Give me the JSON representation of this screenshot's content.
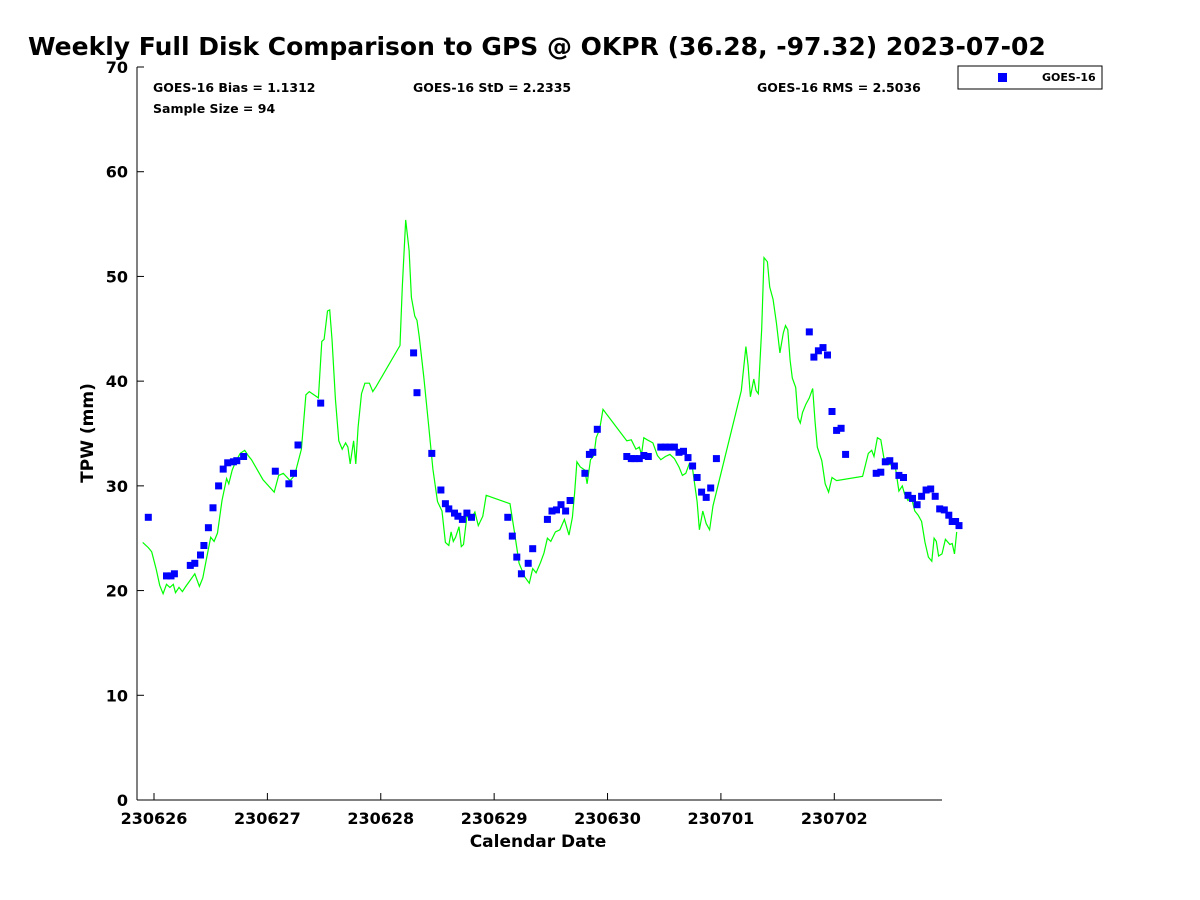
{
  "chart_data": {
    "type": "line+scatter",
    "title": "Weekly Full Disk Comparison to GPS @ OKPR (36.28, -97.32) 2023-07-02",
    "xlabel": "Calendar Date",
    "ylabel": "TPW (mm)",
    "ylim": [
      0,
      70
    ],
    "xlim": [
      -0.15,
      6.95
    ],
    "x_unit": "days since 230626",
    "yticks": [
      0,
      10,
      20,
      30,
      40,
      50,
      60,
      70
    ],
    "xticks": [
      {
        "x": 0,
        "label": "230626"
      },
      {
        "x": 1,
        "label": "230627"
      },
      {
        "x": 2,
        "label": "230628"
      },
      {
        "x": 3,
        "label": "230629"
      },
      {
        "x": 4,
        "label": "230630"
      },
      {
        "x": 5,
        "label": "230701"
      },
      {
        "x": 6,
        "label": "230702"
      }
    ],
    "stats": {
      "bias": "GOES-16 Bias = 1.1312",
      "std": "GOES-16 StD = 2.2335",
      "rms": "GOES-16 RMS = 2.5036",
      "sample": "Sample Size = 94"
    },
    "legend": {
      "position": "top-right-outside",
      "label": "GOES-16"
    },
    "colors": {
      "gps_line": "#00ff00",
      "goes_marker": "#0000ff",
      "axis": "#000000"
    },
    "series": [
      {
        "name": "GPS",
        "style": "line",
        "points": [
          [
            -0.1,
            24.6
          ],
          [
            -0.05,
            24.1
          ],
          [
            -0.02,
            23.7
          ],
          [
            0.02,
            22.0
          ],
          [
            0.05,
            20.5
          ],
          [
            0.08,
            19.7
          ],
          [
            0.11,
            20.6
          ],
          [
            0.14,
            20.3
          ],
          [
            0.17,
            20.6
          ],
          [
            0.19,
            19.8
          ],
          [
            0.22,
            20.3
          ],
          [
            0.25,
            19.9
          ],
          [
            0.28,
            20.4
          ],
          [
            0.32,
            21.0
          ],
          [
            0.36,
            21.6
          ],
          [
            0.4,
            20.4
          ],
          [
            0.43,
            21.2
          ],
          [
            0.46,
            22.9
          ],
          [
            0.5,
            25.1
          ],
          [
            0.53,
            24.7
          ],
          [
            0.56,
            25.5
          ],
          [
            0.6,
            28.6
          ],
          [
            0.64,
            30.7
          ],
          [
            0.66,
            30.2
          ],
          [
            0.69,
            31.5
          ],
          [
            0.72,
            32.3
          ],
          [
            0.76,
            33.1
          ],
          [
            0.8,
            33.4
          ],
          [
            0.83,
            32.9
          ],
          [
            0.86,
            32.5
          ],
          [
            0.96,
            30.6
          ],
          [
            1.06,
            29.4
          ],
          [
            1.1,
            31.0
          ],
          [
            1.14,
            31.2
          ],
          [
            1.2,
            30.5
          ],
          [
            1.24,
            31.0
          ],
          [
            1.3,
            33.5
          ],
          [
            1.34,
            38.7
          ],
          [
            1.37,
            39.0
          ],
          [
            1.45,
            38.4
          ],
          [
            1.48,
            43.8
          ],
          [
            1.5,
            44.0
          ],
          [
            1.53,
            46.7
          ],
          [
            1.55,
            46.8
          ],
          [
            1.57,
            44.0
          ],
          [
            1.6,
            38.3
          ],
          [
            1.63,
            34.3
          ],
          [
            1.66,
            33.5
          ],
          [
            1.69,
            34.1
          ],
          [
            1.71,
            33.7
          ],
          [
            1.73,
            32.1
          ],
          [
            1.76,
            34.3
          ],
          [
            1.78,
            32.1
          ],
          [
            1.8,
            35.6
          ],
          [
            1.83,
            38.8
          ],
          [
            1.86,
            39.8
          ],
          [
            1.9,
            39.8
          ],
          [
            1.93,
            39.0
          ],
          [
            1.96,
            39.5
          ],
          [
            2.17,
            43.4
          ],
          [
            2.19,
            49.0
          ],
          [
            2.22,
            55.4
          ],
          [
            2.25,
            52.5
          ],
          [
            2.27,
            48.0
          ],
          [
            2.3,
            46.2
          ],
          [
            2.32,
            45.8
          ],
          [
            2.34,
            44.2
          ],
          [
            2.38,
            40.3
          ],
          [
            2.42,
            36.0
          ],
          [
            2.46,
            31.6
          ],
          [
            2.5,
            28.5
          ],
          [
            2.54,
            27.6
          ],
          [
            2.57,
            24.6
          ],
          [
            2.6,
            24.3
          ],
          [
            2.62,
            25.6
          ],
          [
            2.64,
            24.7
          ],
          [
            2.66,
            25.1
          ],
          [
            2.69,
            26.1
          ],
          [
            2.71,
            24.2
          ],
          [
            2.73,
            24.4
          ],
          [
            2.76,
            27.1
          ],
          [
            2.8,
            26.9
          ],
          [
            2.83,
            27.5
          ],
          [
            2.86,
            26.2
          ],
          [
            2.9,
            27.1
          ],
          [
            2.93,
            29.1
          ],
          [
            3.14,
            28.3
          ],
          [
            3.18,
            25.5
          ],
          [
            3.22,
            22.6
          ],
          [
            3.27,
            21.3
          ],
          [
            3.31,
            20.7
          ],
          [
            3.34,
            22.1
          ],
          [
            3.37,
            21.7
          ],
          [
            3.41,
            22.7
          ],
          [
            3.44,
            23.6
          ],
          [
            3.47,
            25.0
          ],
          [
            3.5,
            24.7
          ],
          [
            3.54,
            25.6
          ],
          [
            3.58,
            25.8
          ],
          [
            3.62,
            26.8
          ],
          [
            3.66,
            25.3
          ],
          [
            3.69,
            27.0
          ],
          [
            3.71,
            29.3
          ],
          [
            3.73,
            32.3
          ],
          [
            3.76,
            31.8
          ],
          [
            3.8,
            31.5
          ],
          [
            3.82,
            30.2
          ],
          [
            3.85,
            32.5
          ],
          [
            3.88,
            32.9
          ],
          [
            3.9,
            34.6
          ],
          [
            3.93,
            35.4
          ],
          [
            3.96,
            37.3
          ],
          [
            4.17,
            34.3
          ],
          [
            4.21,
            34.4
          ],
          [
            4.25,
            33.5
          ],
          [
            4.28,
            33.7
          ],
          [
            4.3,
            33.0
          ],
          [
            4.32,
            34.6
          ],
          [
            4.35,
            34.4
          ],
          [
            4.4,
            34.1
          ],
          [
            4.44,
            32.9
          ],
          [
            4.47,
            32.5
          ],
          [
            4.51,
            32.8
          ],
          [
            4.55,
            33.0
          ],
          [
            4.59,
            32.6
          ],
          [
            4.63,
            31.8
          ],
          [
            4.66,
            31.0
          ],
          [
            4.69,
            31.2
          ],
          [
            4.72,
            32.1
          ],
          [
            4.75,
            31.6
          ],
          [
            4.79,
            28.5
          ],
          [
            4.81,
            25.8
          ],
          [
            4.84,
            27.6
          ],
          [
            4.87,
            26.4
          ],
          [
            4.9,
            25.8
          ],
          [
            4.93,
            28.1
          ],
          [
            5.18,
            39.1
          ],
          [
            5.22,
            43.3
          ],
          [
            5.24,
            41.5
          ],
          [
            5.26,
            38.5
          ],
          [
            5.29,
            40.2
          ],
          [
            5.31,
            39.1
          ],
          [
            5.33,
            38.8
          ],
          [
            5.36,
            45.0
          ],
          [
            5.38,
            51.8
          ],
          [
            5.41,
            51.4
          ],
          [
            5.43,
            49.0
          ],
          [
            5.46,
            47.8
          ],
          [
            5.49,
            45.5
          ],
          [
            5.52,
            42.7
          ],
          [
            5.55,
            44.6
          ],
          [
            5.57,
            45.3
          ],
          [
            5.59,
            44.9
          ],
          [
            5.61,
            42.0
          ],
          [
            5.63,
            40.3
          ],
          [
            5.66,
            39.4
          ],
          [
            5.68,
            36.5
          ],
          [
            5.7,
            36.0
          ],
          [
            5.72,
            37.0
          ],
          [
            5.75,
            37.8
          ],
          [
            5.78,
            38.4
          ],
          [
            5.81,
            39.3
          ],
          [
            5.83,
            36.2
          ],
          [
            5.85,
            33.7
          ],
          [
            5.89,
            32.4
          ],
          [
            5.92,
            30.2
          ],
          [
            5.95,
            29.4
          ],
          [
            5.98,
            30.8
          ],
          [
            6.02,
            30.5
          ],
          [
            6.25,
            30.9
          ],
          [
            6.3,
            33.1
          ],
          [
            6.33,
            33.4
          ],
          [
            6.35,
            32.8
          ],
          [
            6.38,
            34.6
          ],
          [
            6.41,
            34.4
          ],
          [
            6.44,
            32.5
          ],
          [
            6.47,
            32.1
          ],
          [
            6.5,
            32.0
          ],
          [
            6.54,
            31.7
          ],
          [
            6.57,
            29.5
          ],
          [
            6.6,
            30.0
          ],
          [
            6.62,
            29.2
          ],
          [
            6.65,
            28.6
          ],
          [
            6.68,
            28.9
          ],
          [
            6.71,
            27.6
          ],
          [
            6.74,
            27.2
          ],
          [
            6.77,
            26.6
          ],
          [
            6.8,
            24.6
          ],
          [
            6.83,
            23.2
          ],
          [
            6.86,
            22.8
          ],
          [
            6.88,
            25.0
          ],
          [
            6.9,
            24.7
          ],
          [
            6.92,
            23.3
          ],
          [
            6.95,
            23.5
          ],
          [
            6.98,
            24.9
          ],
          [
            7.02,
            24.4
          ],
          [
            7.04,
            24.5
          ],
          [
            7.06,
            23.5
          ],
          [
            7.08,
            25.6
          ]
        ]
      },
      {
        "name": "GOES-16",
        "style": "scatter",
        "marker": "square",
        "points": [
          [
            -0.05,
            27.0
          ],
          [
            0.11,
            21.4
          ],
          [
            0.15,
            21.4
          ],
          [
            0.18,
            21.6
          ],
          [
            0.32,
            22.4
          ],
          [
            0.36,
            22.6
          ],
          [
            0.41,
            23.4
          ],
          [
            0.44,
            24.3
          ],
          [
            0.48,
            26.0
          ],
          [
            0.52,
            27.9
          ],
          [
            0.57,
            30.0
          ],
          [
            0.61,
            31.6
          ],
          [
            0.65,
            32.2
          ],
          [
            0.7,
            32.3
          ],
          [
            0.73,
            32.4
          ],
          [
            0.79,
            32.8
          ],
          [
            1.07,
            31.4
          ],
          [
            1.19,
            30.2
          ],
          [
            1.23,
            31.2
          ],
          [
            1.27,
            33.9
          ],
          [
            1.47,
            37.9
          ],
          [
            2.29,
            42.7
          ],
          [
            2.32,
            38.9
          ],
          [
            2.45,
            33.1
          ],
          [
            2.53,
            29.6
          ],
          [
            2.57,
            28.3
          ],
          [
            2.6,
            27.8
          ],
          [
            2.65,
            27.4
          ],
          [
            2.68,
            27.1
          ],
          [
            2.72,
            26.8
          ],
          [
            2.76,
            27.4
          ],
          [
            2.8,
            27.0
          ],
          [
            3.12,
            27.0
          ],
          [
            3.16,
            25.2
          ],
          [
            3.2,
            23.2
          ],
          [
            3.24,
            21.6
          ],
          [
            3.3,
            22.6
          ],
          [
            3.34,
            24.0
          ],
          [
            3.47,
            26.8
          ],
          [
            3.51,
            27.6
          ],
          [
            3.55,
            27.7
          ],
          [
            3.59,
            28.2
          ],
          [
            3.63,
            27.6
          ],
          [
            3.67,
            28.6
          ],
          [
            3.8,
            31.2
          ],
          [
            3.84,
            33.0
          ],
          [
            3.87,
            33.2
          ],
          [
            3.91,
            35.4
          ],
          [
            4.17,
            32.8
          ],
          [
            4.21,
            32.6
          ],
          [
            4.24,
            32.6
          ],
          [
            4.28,
            32.6
          ],
          [
            4.32,
            32.9
          ],
          [
            4.36,
            32.8
          ],
          [
            4.47,
            33.7
          ],
          [
            4.51,
            33.7
          ],
          [
            4.55,
            33.7
          ],
          [
            4.59,
            33.7
          ],
          [
            4.63,
            33.2
          ],
          [
            4.67,
            33.3
          ],
          [
            4.71,
            32.7
          ],
          [
            4.75,
            31.9
          ],
          [
            4.79,
            30.8
          ],
          [
            4.83,
            29.4
          ],
          [
            4.87,
            28.9
          ],
          [
            4.91,
            29.8
          ],
          [
            4.96,
            32.6
          ],
          [
            5.78,
            44.7
          ],
          [
            5.82,
            42.3
          ],
          [
            5.86,
            42.9
          ],
          [
            5.9,
            43.2
          ],
          [
            5.94,
            42.5
          ],
          [
            5.98,
            37.1
          ],
          [
            6.02,
            35.3
          ],
          [
            6.06,
            35.5
          ],
          [
            6.1,
            33.0
          ],
          [
            6.37,
            31.2
          ],
          [
            6.41,
            31.3
          ],
          [
            6.45,
            32.3
          ],
          [
            6.49,
            32.4
          ],
          [
            6.53,
            31.9
          ],
          [
            6.57,
            31.0
          ],
          [
            6.61,
            30.8
          ],
          [
            6.65,
            29.1
          ],
          [
            6.69,
            28.8
          ],
          [
            6.73,
            28.2
          ],
          [
            6.77,
            29.0
          ],
          [
            6.81,
            29.6
          ],
          [
            6.85,
            29.7
          ],
          [
            6.89,
            29.0
          ],
          [
            6.93,
            27.8
          ],
          [
            6.97,
            27.7
          ],
          [
            7.01,
            27.2
          ],
          [
            7.04,
            26.6
          ],
          [
            7.07,
            26.6
          ],
          [
            7.1,
            26.2
          ]
        ]
      }
    ]
  }
}
